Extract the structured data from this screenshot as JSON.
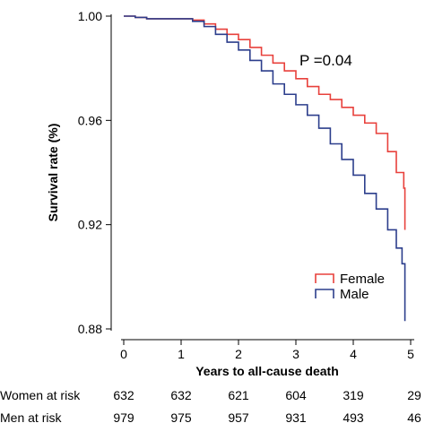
{
  "chart_data": {
    "type": "line",
    "xlabel": "Years to all-cause death",
    "ylabel": "Survival rate (%)",
    "xlim": [
      0,
      5
    ],
    "ylim": [
      0.88,
      1.0
    ],
    "x_ticks": [
      0,
      1,
      2,
      3,
      4,
      5
    ],
    "y_ticks": [
      0.88,
      0.92,
      0.96,
      1.0
    ],
    "y_tick_labels": [
      "0.88",
      "0.92",
      "0.96",
      "1.00"
    ],
    "grid": false,
    "legend_position": "bottom-right",
    "annotation": "P =0.04",
    "series": [
      {
        "name": "Female",
        "color": "#e8413c",
        "step": true,
        "x": [
          0,
          0.2,
          0.4,
          0.6,
          0.8,
          1.0,
          1.2,
          1.4,
          1.6,
          1.8,
          2.0,
          2.2,
          2.4,
          2.6,
          2.8,
          3.0,
          3.2,
          3.4,
          3.6,
          3.8,
          4.0,
          4.2,
          4.4,
          4.6,
          4.75,
          4.88,
          4.9
        ],
        "y": [
          1.0,
          0.9995,
          0.999,
          0.999,
          0.999,
          0.999,
          0.9985,
          0.997,
          0.995,
          0.993,
          0.991,
          0.988,
          0.985,
          0.982,
          0.979,
          0.976,
          0.973,
          0.97,
          0.968,
          0.965,
          0.962,
          0.959,
          0.955,
          0.948,
          0.94,
          0.934,
          0.918
        ]
      },
      {
        "name": "Male",
        "color": "#2c3e8c",
        "step": true,
        "x": [
          0,
          0.2,
          0.4,
          0.6,
          0.8,
          1.0,
          1.2,
          1.4,
          1.6,
          1.8,
          2.0,
          2.2,
          2.4,
          2.6,
          2.8,
          3.0,
          3.2,
          3.4,
          3.6,
          3.8,
          4.0,
          4.2,
          4.4,
          4.6,
          4.75,
          4.85,
          4.88,
          4.9
        ],
        "y": [
          1.0,
          0.9995,
          0.999,
          0.999,
          0.999,
          0.999,
          0.998,
          0.996,
          0.993,
          0.99,
          0.987,
          0.983,
          0.979,
          0.974,
          0.97,
          0.966,
          0.962,
          0.957,
          0.951,
          0.945,
          0.939,
          0.932,
          0.926,
          0.918,
          0.911,
          0.905,
          0.905,
          0.883
        ]
      }
    ]
  },
  "risk_table": {
    "rows": [
      {
        "label": "Women at risk",
        "values": [
          "632",
          "632",
          "621",
          "604",
          "319",
          "29"
        ]
      },
      {
        "label": "Men at risk",
        "values": [
          "979",
          "975",
          "957",
          "931",
          "493",
          "46"
        ]
      }
    ]
  }
}
